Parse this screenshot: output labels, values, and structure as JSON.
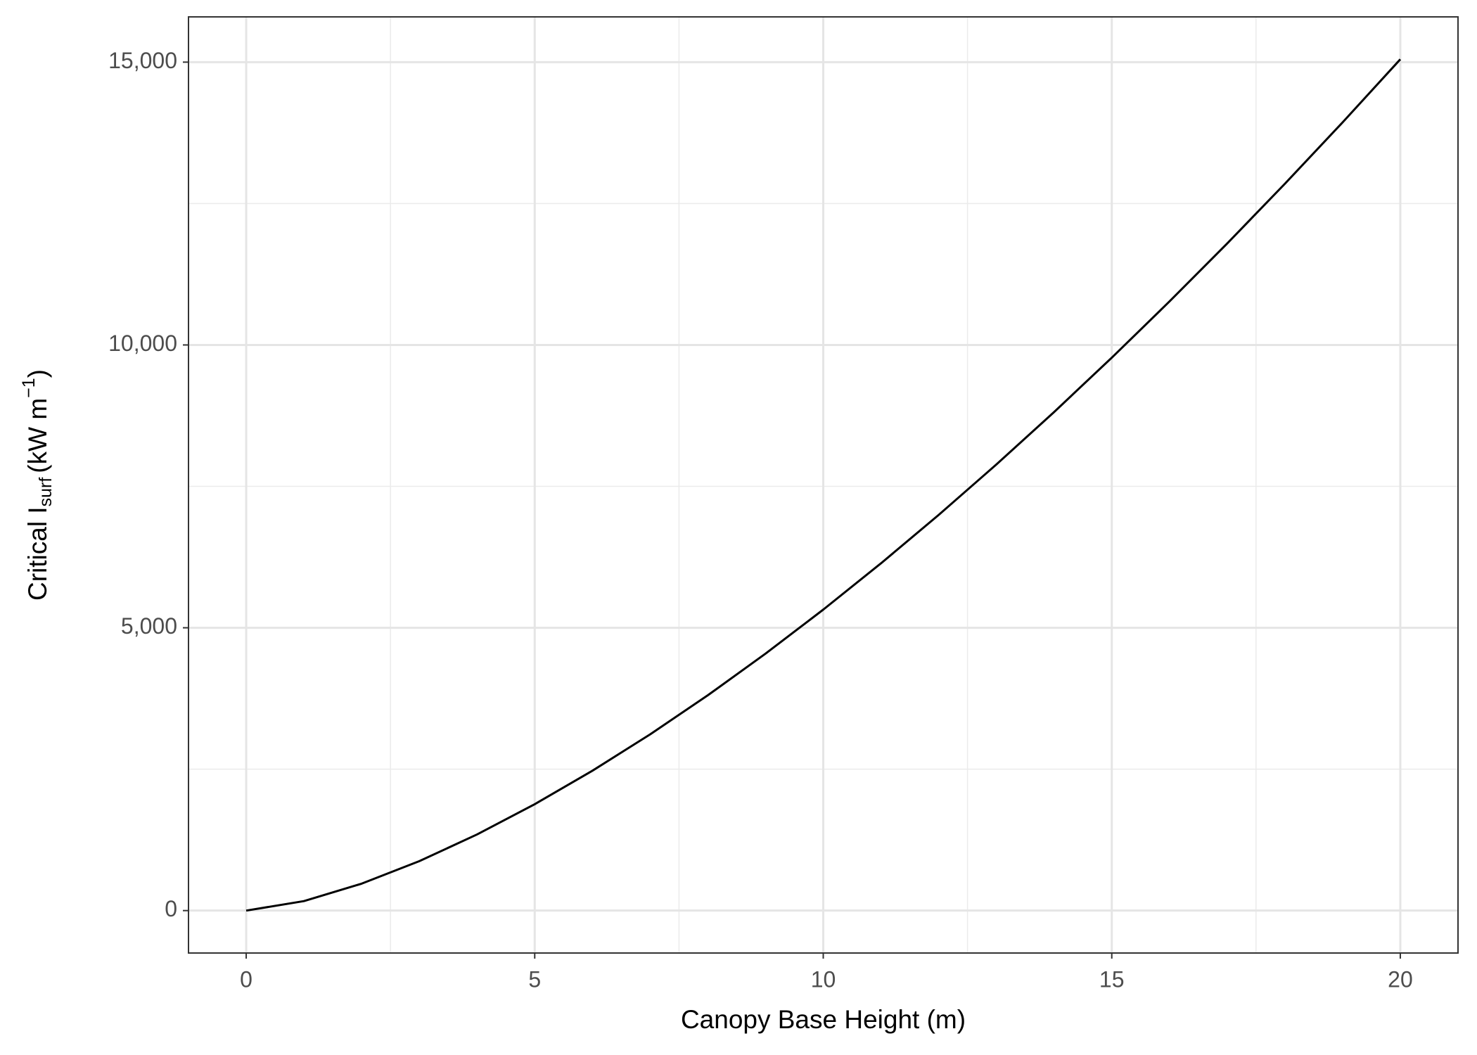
{
  "chart_data": {
    "type": "line",
    "x_label": "Canopy Base Height (m)",
    "y_label": {
      "text": "Critical I",
      "sub": "surf",
      "unit": "(kW m",
      "sup": "−1",
      "close": ")"
    },
    "x": [
      0,
      1,
      2,
      3,
      4,
      5,
      6,
      7,
      8,
      9,
      10,
      11,
      12,
      13,
      14,
      15,
      16,
      17,
      18,
      19,
      20
    ],
    "series": [
      {
        "color": "#000000",
        "values": [
          0,
          168,
          476,
          874,
          1346,
          1881,
          2473,
          3116,
          3807,
          4543,
          5321,
          6139,
          6995,
          7887,
          8814,
          9775,
          10769,
          11794,
          12850,
          13935,
          15050
        ]
      }
    ],
    "xlim": [
      -1,
      21
    ],
    "ylim": [
      -750,
      15800
    ],
    "xticks": [
      0,
      5,
      10,
      15,
      20
    ],
    "yticks": [
      0,
      {
        "value": 5000,
        "label": "5,000"
      },
      {
        "value": 10000,
        "label": "10,000"
      },
      {
        "value": 15000,
        "label": "15,000"
      }
    ],
    "x_minor_grid": [
      2.5,
      7.5,
      12.5,
      17.5
    ],
    "y_minor_grid": [
      2500,
      7500,
      12500
    ],
    "grid": true
  }
}
